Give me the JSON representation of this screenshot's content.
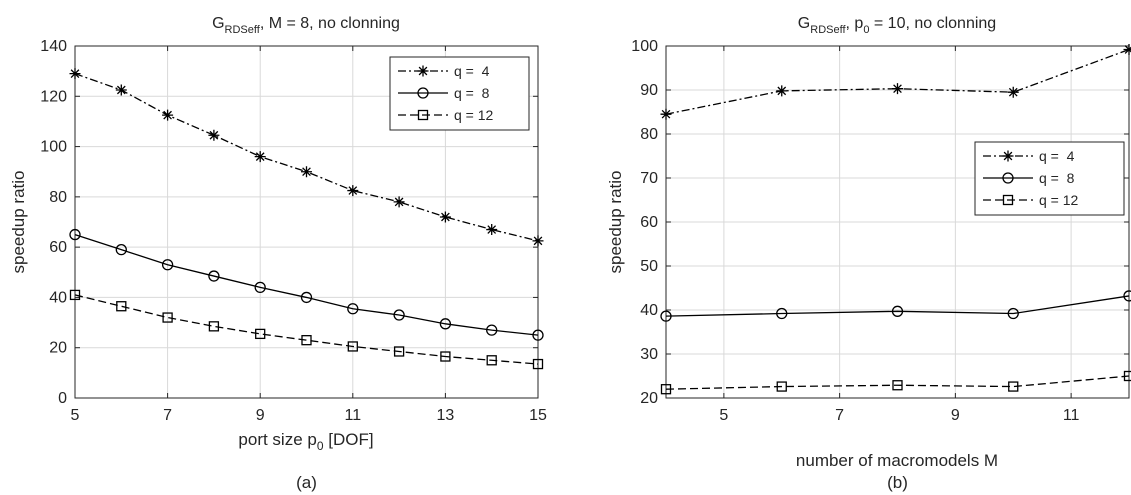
{
  "chart_data": [
    {
      "type": "line",
      "title": "G_RDSeff, M = 8, no clonning",
      "title_parts": {
        "base": "G",
        "sub": "RDSeff",
        "rest": ", M = 8, no clonning"
      },
      "xlabel": "port size p_0 [DOF]",
      "xlabel_parts": {
        "base": "port size p",
        "sub": "0",
        "rest": " [DOF]"
      },
      "ylabel": "speedup ratio",
      "caption": "(a)",
      "xlim": [
        5,
        15
      ],
      "ylim": [
        0,
        140
      ],
      "xticks": [
        5,
        7,
        9,
        11,
        13,
        15
      ],
      "yticks": [
        0,
        20,
        40,
        60,
        80,
        100,
        120,
        140
      ],
      "grid": true,
      "legend_position": "top-right",
      "x": [
        5,
        6,
        7,
        8,
        9,
        10,
        11,
        12,
        13,
        14,
        15
      ],
      "series": [
        {
          "name": "q =  4",
          "marker": "star",
          "dash": "dashdot",
          "values": [
            129,
            122.5,
            112.5,
            104.5,
            96,
            90,
            82.5,
            78,
            72,
            67,
            62.5
          ]
        },
        {
          "name": "q =  8",
          "marker": "circle",
          "dash": "solid",
          "values": [
            65,
            59,
            53,
            48.5,
            44,
            40,
            35.5,
            33,
            29.5,
            27,
            25
          ]
        },
        {
          "name": "q = 12",
          "marker": "square",
          "dash": "dashed",
          "values": [
            41,
            36.5,
            32,
            28.5,
            25.5,
            23,
            20.5,
            18.5,
            16.5,
            15,
            13.5
          ]
        }
      ]
    },
    {
      "type": "line",
      "title": "G_RDSeff, p_0 = 10, no clonning",
      "title_parts": {
        "base": "G",
        "sub": "RDSeff",
        "mid": ", p",
        "sub2": "0",
        "rest": " = 10, no clonning"
      },
      "xlabel": "number of macromodels M",
      "ylabel": "speedup ratio",
      "caption": "(b)",
      "xlim": [
        4,
        12
      ],
      "ylim": [
        20,
        100
      ],
      "xticks": [
        5,
        7,
        9,
        11
      ],
      "yticks": [
        20,
        30,
        40,
        50,
        60,
        70,
        80,
        90,
        100
      ],
      "grid": true,
      "legend_position": "right",
      "x": [
        4,
        6,
        8,
        10,
        12
      ],
      "series": [
        {
          "name": "q =  4",
          "marker": "star",
          "dash": "dashdot",
          "values": [
            84.5,
            89.8,
            90.3,
            89.5,
            99.2
          ]
        },
        {
          "name": "q =  8",
          "marker": "circle",
          "dash": "solid",
          "values": [
            38.6,
            39.2,
            39.7,
            39.2,
            43.2
          ]
        },
        {
          "name": "q = 12",
          "marker": "square",
          "dash": "dashed",
          "values": [
            22,
            22.6,
            22.9,
            22.6,
            25
          ]
        }
      ]
    }
  ]
}
